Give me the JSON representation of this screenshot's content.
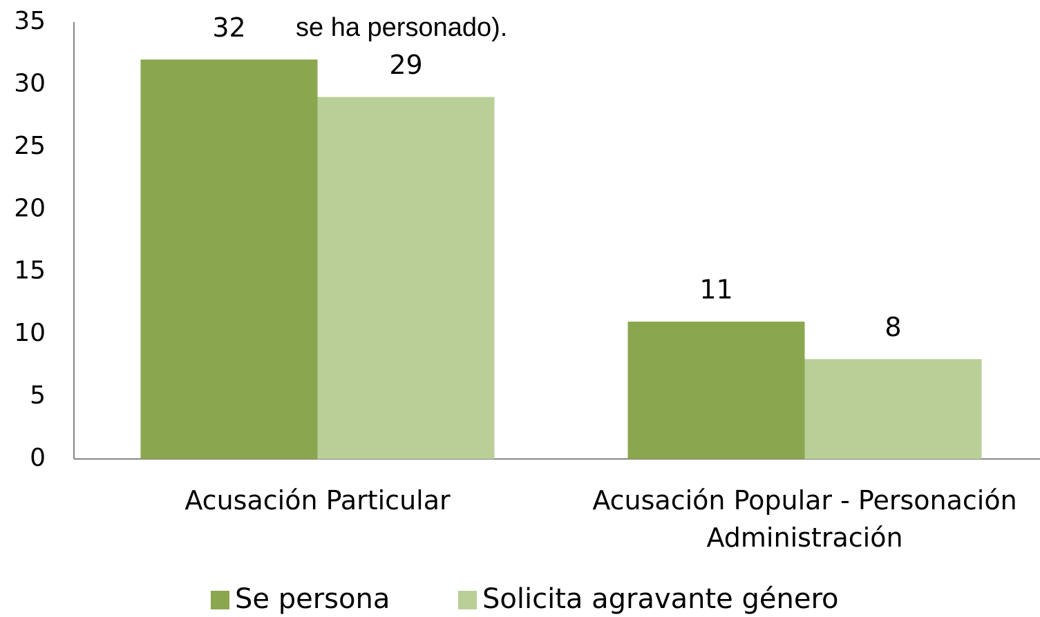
{
  "chart_data": {
    "type": "bar",
    "annotation": "se ha personado).",
    "categories": [
      "Acusación Particular",
      "Acusación Popular - Personación Administración"
    ],
    "series": [
      {
        "name": "Se persona",
        "color": "#8aa64f",
        "values": [
          32,
          11
        ]
      },
      {
        "name": "Solicita agravante género",
        "color": "#bacf98",
        "values": [
          29,
          8
        ]
      }
    ],
    "ylim": [
      0,
      35
    ],
    "yticks": [
      0,
      5,
      10,
      15,
      20,
      25,
      30,
      35
    ],
    "grid": false,
    "legend": "bottom"
  }
}
